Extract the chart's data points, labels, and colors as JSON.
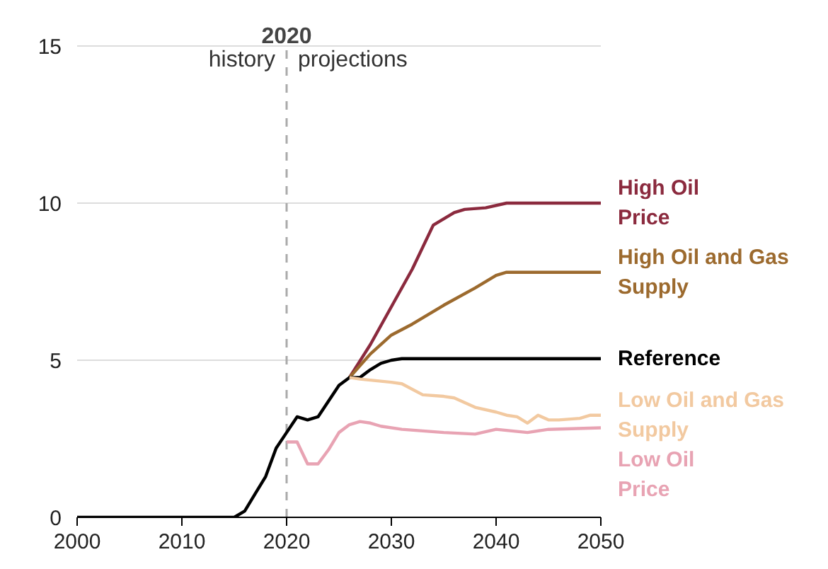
{
  "chart_data": {
    "type": "line",
    "xlim": [
      2000,
      2050
    ],
    "ylim": [
      0,
      15
    ],
    "xticks": [
      2000,
      2010,
      2020,
      2030,
      2040,
      2050
    ],
    "yticks": [
      0,
      5,
      10,
      15
    ],
    "grid": "y",
    "line_style": "solid",
    "marker": "none",
    "series": [
      {
        "name": "High Oil Price",
        "color": "#8b2a3e",
        "x": [
          2026,
          2028,
          2030,
          2032,
          2034,
          2036,
          2037,
          2039,
          2041,
          2045,
          2050
        ],
        "values": [
          4.45,
          5.5,
          6.7,
          7.9,
          9.3,
          9.7,
          9.8,
          9.85,
          10.0,
          10.0,
          10.0
        ]
      },
      {
        "name": "High Oil and Gas Supply",
        "color": "#9c6a2e",
        "x": [
          2026,
          2028,
          2030,
          2032,
          2035,
          2038,
          2040,
          2041,
          2050
        ],
        "values": [
          4.45,
          5.2,
          5.8,
          6.15,
          6.75,
          7.3,
          7.7,
          7.8,
          7.8
        ]
      },
      {
        "name": "Reference",
        "color": "#000000",
        "x": [
          2000,
          2005,
          2010,
          2014,
          2015,
          2016,
          2017,
          2018,
          2019,
          2020,
          2021,
          2022,
          2023,
          2024,
          2025,
          2026,
          2027,
          2028,
          2029,
          2030,
          2031,
          2040,
          2050
        ],
        "values": [
          0,
          0,
          0,
          0,
          0,
          0.2,
          0.75,
          1.3,
          2.2,
          2.7,
          3.2,
          3.1,
          3.2,
          3.7,
          4.2,
          4.45,
          4.45,
          4.7,
          4.9,
          5.0,
          5.05,
          5.05,
          5.05
        ]
      },
      {
        "name": "Low Oil and Gas Supply",
        "color": "#f2c9a0",
        "x": [
          2026,
          2027,
          2030,
          2031,
          2033,
          2035,
          2036,
          2038,
          2040,
          2041,
          2042,
          2043,
          2044,
          2045,
          2046,
          2048,
          2049,
          2050
        ],
        "values": [
          4.45,
          4.4,
          4.3,
          4.25,
          3.9,
          3.85,
          3.8,
          3.5,
          3.35,
          3.25,
          3.2,
          3.0,
          3.25,
          3.1,
          3.1,
          3.15,
          3.25,
          3.25
        ]
      },
      {
        "name": "Low Oil Price",
        "color": "#e8a3b3",
        "x": [
          2020,
          2021,
          2022,
          2023,
          2024,
          2025,
          2026,
          2027,
          2028,
          2029,
          2031,
          2035,
          2038,
          2040,
          2043,
          2045,
          2050
        ],
        "values": [
          2.4,
          2.4,
          1.7,
          1.7,
          2.15,
          2.7,
          2.95,
          3.05,
          3.0,
          2.9,
          2.8,
          2.7,
          2.65,
          2.8,
          2.7,
          2.8,
          2.85
        ]
      }
    ],
    "ref_lines": [
      {
        "axis": "x",
        "value": 2020,
        "label": "2020",
        "line_style": "dashed",
        "color": "#aaaaaa"
      }
    ],
    "annotations": [
      "history",
      "projections"
    ]
  }
}
